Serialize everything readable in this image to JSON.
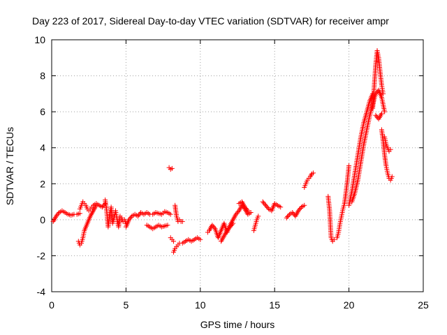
{
  "chart_data": {
    "type": "scatter",
    "title": "Day 223 of 2017, Sidereal Day-to-day VTEC variation (SDTVAR) for receiver ampr",
    "xlabel": "GPS time / hours",
    "ylabel": "SDTVAR / TECUs",
    "xlim": [
      0,
      25
    ],
    "ylim": [
      -4,
      10
    ],
    "xticks": [
      0,
      5,
      10,
      15,
      20,
      25
    ],
    "yticks": [
      -4,
      -2,
      0,
      2,
      4,
      6,
      8,
      10
    ],
    "xtick_labels": [
      "0",
      "5",
      "10",
      "15",
      "20",
      "25"
    ],
    "ytick_labels": [
      "-4",
      "-2",
      "0",
      "2",
      "4",
      "6",
      "8",
      "10"
    ],
    "grid": true,
    "marker": "+",
    "color": "#ff0000",
    "series": [
      {
        "name": "SDTVAR",
        "segments": [
          {
            "x": [
              0.1,
              0.3,
              0.5,
              0.7,
              0.9,
              1.1,
              1.3,
              1.5,
              1.7,
              1.9
            ],
            "y": [
              -0.1,
              0.2,
              0.4,
              0.5,
              0.4,
              0.3,
              0.25,
              0.3,
              0.3,
              0.35
            ]
          },
          {
            "x": [
              1.8,
              1.9,
              2.0,
              2.1,
              2.2,
              2.4,
              2.6,
              2.8,
              3.0
            ],
            "y": [
              -1.2,
              -1.4,
              -1.3,
              -1.0,
              -0.6,
              -0.2,
              0.2,
              0.5,
              0.8
            ]
          },
          {
            "x": [
              1.9,
              2.0,
              2.1,
              2.2,
              2.3,
              2.4,
              2.5,
              2.6,
              2.7,
              2.8,
              3.0,
              3.2,
              3.4,
              3.6
            ],
            "y": [
              0.6,
              0.8,
              1.0,
              0.9,
              0.8,
              0.6,
              0.5,
              0.6,
              0.7,
              0.8,
              0.9,
              0.8,
              0.7,
              0.9
            ]
          },
          {
            "x": [
              3.6,
              3.7,
              3.8,
              3.9,
              4.0,
              4.1,
              4.2,
              4.3,
              4.4,
              4.5,
              4.6,
              4.7,
              4.8,
              4.9,
              5.0
            ],
            "y": [
              1.1,
              0.5,
              -0.4,
              0.3,
              0.7,
              -0.2,
              0.1,
              0.5,
              0.0,
              -0.4,
              0.2,
              0.1,
              -0.1,
              0.0,
              -0.2
            ]
          },
          {
            "x": [
              5.0,
              5.2,
              5.4,
              5.6,
              5.8,
              6.0,
              6.2,
              6.4,
              6.6,
              6.8,
              7.0,
              7.2,
              7.4,
              7.6,
              7.8,
              8.0
            ],
            "y": [
              -0.4,
              0.0,
              0.2,
              0.3,
              0.2,
              0.4,
              0.3,
              0.4,
              0.3,
              0.3,
              0.4,
              0.35,
              0.3,
              0.45,
              0.4,
              0.3
            ]
          },
          {
            "x": [
              6.4,
              6.6,
              6.8,
              7.0,
              7.2,
              7.4,
              7.6,
              7.8
            ],
            "y": [
              -0.3,
              -0.4,
              -0.5,
              -0.4,
              -0.3,
              -0.4,
              -0.35,
              -0.3
            ]
          },
          {
            "x": [
              7.9,
              8.0,
              8.1
            ],
            "y": [
              2.9,
              2.8,
              2.85
            ]
          },
          {
            "x": [
              8.0,
              8.1,
              8.2
            ],
            "y": [
              -1.0,
              -1.1,
              -1.2
            ]
          },
          {
            "x": [
              8.3,
              8.4,
              8.5,
              8.6,
              8.7,
              8.8
            ],
            "y": [
              0.8,
              0.2,
              -0.1,
              0.0,
              -0.1,
              -0.1
            ]
          },
          {
            "x": [
              8.2,
              8.3,
              8.4,
              8.5,
              8.6,
              8.8,
              9.0,
              9.2,
              9.4,
              9.6,
              9.8,
              10.0
            ],
            "y": [
              -1.8,
              -1.6,
              -1.5,
              -1.4,
              -1.3,
              -1.3,
              -1.2,
              -1.1,
              -1.2,
              -1.1,
              -1.0,
              -1.1
            ]
          },
          {
            "x": [
              10.5,
              10.6,
              10.8,
              11.0,
              11.2,
              11.4,
              11.6,
              11.8,
              12.0,
              12.2,
              12.4,
              12.6,
              12.8,
              13.0,
              13.2,
              13.4
            ],
            "y": [
              -0.7,
              -0.6,
              -0.3,
              -0.5,
              -1.0,
              -0.6,
              -0.2,
              -0.7,
              -0.3,
              0.0,
              0.3,
              0.5,
              0.8,
              0.6,
              0.3,
              0.4
            ]
          },
          {
            "x": [
              11.4,
              11.6,
              11.8,
              12.0,
              12.2
            ],
            "y": [
              -1.2,
              -0.9,
              -0.6,
              -0.4,
              -0.2
            ]
          },
          {
            "x": [
              12.6,
              12.8,
              13.0,
              13.2
            ],
            "y": [
              0.9,
              1.0,
              0.7,
              0.5
            ]
          },
          {
            "x": [
              13.6,
              13.7,
              13.8,
              13.9
            ],
            "y": [
              -0.6,
              -0.3,
              0.0,
              0.2
            ]
          },
          {
            "x": [
              14.2,
              14.4,
              14.6,
              14.8,
              15.0,
              15.2,
              15.4
            ],
            "y": [
              1.0,
              0.8,
              0.6,
              0.5,
              0.9,
              0.8,
              0.7
            ]
          },
          {
            "x": [
              15.8,
              16.0,
              16.2,
              16.4,
              16.6,
              16.8,
              17.0
            ],
            "y": [
              0.1,
              0.3,
              0.4,
              0.2,
              0.5,
              0.7,
              0.8
            ]
          },
          {
            "x": [
              17.0,
              17.1,
              17.2,
              17.3,
              17.4,
              17.5,
              17.6
            ],
            "y": [
              1.8,
              2.0,
              2.2,
              2.3,
              2.4,
              2.55,
              2.6
            ]
          },
          {
            "x": [
              18.6,
              18.7,
              18.8,
              18.9,
              19.0
            ],
            "y": [
              1.3,
              0.5,
              -1.0,
              -1.2,
              -1.1
            ]
          },
          {
            "x": [
              19.2,
              19.3,
              19.4,
              19.5,
              19.6,
              19.7,
              19.8,
              19.9,
              20.0
            ],
            "y": [
              -1.0,
              -0.7,
              -0.2,
              0.2,
              0.6,
              0.9,
              1.5,
              2.2,
              3.0
            ]
          },
          {
            "x": [
              20.0,
              20.2,
              20.4,
              20.6,
              20.8,
              21.0,
              21.2,
              21.4,
              21.6
            ],
            "y": [
              0.8,
              1.6,
              2.6,
              3.6,
              4.6,
              5.4,
              6.0,
              6.6,
              7.0
            ]
          },
          {
            "x": [
              20.2,
              20.4,
              20.6,
              20.8,
              21.0,
              21.2,
              21.4,
              21.6,
              21.8,
              22.0,
              22.2,
              22.4
            ],
            "y": [
              1.0,
              1.5,
              2.2,
              3.2,
              4.2,
              5.0,
              5.8,
              6.4,
              7.0,
              7.2,
              6.8,
              6.0
            ]
          },
          {
            "x": [
              21.6,
              21.7,
              21.8,
              21.9,
              22.0,
              22.1,
              22.2,
              22.3
            ],
            "y": [
              6.2,
              7.4,
              8.6,
              9.4,
              9.0,
              8.2,
              7.5,
              7.0
            ]
          },
          {
            "x": [
              21.8,
              22.0,
              22.2
            ],
            "y": [
              5.8,
              5.6,
              5.9
            ]
          },
          {
            "x": [
              22.2,
              22.3,
              22.4,
              22.5,
              22.6,
              22.7,
              22.8,
              22.9
            ],
            "y": [
              5.0,
              4.4,
              3.6,
              3.0,
              2.6,
              2.3,
              2.2,
              2.4
            ]
          },
          {
            "x": [
              22.4,
              22.5,
              22.6,
              22.7,
              22.8
            ],
            "y": [
              4.6,
              4.2,
              4.0,
              3.8,
              3.9
            ]
          }
        ]
      }
    ]
  }
}
